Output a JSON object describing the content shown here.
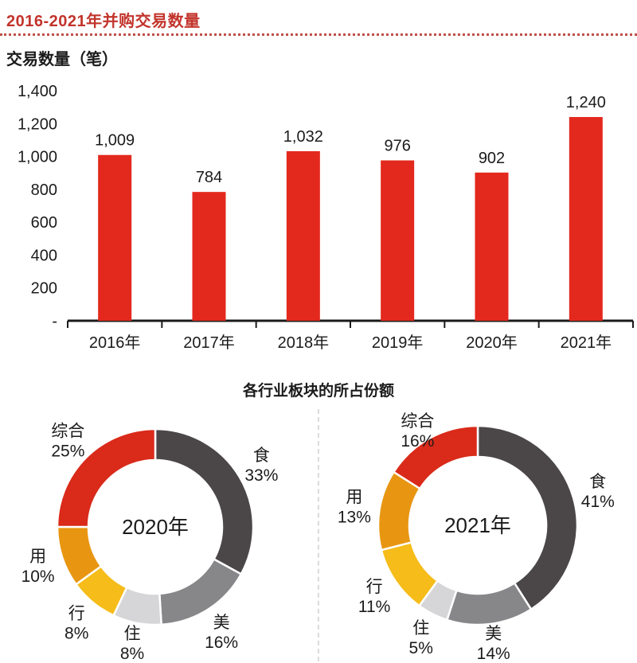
{
  "header": {
    "title": "2016-2021年并购交易数量",
    "title_color": "#c2342c"
  },
  "donut_section": {
    "title": "各行业板块的所占份额"
  },
  "chart_data": [
    {
      "type": "bar",
      "title": "交易数量（笔）",
      "categories": [
        "2016年",
        "2017年",
        "2018年",
        "2019年",
        "2020年",
        "2021年"
      ],
      "values": [
        1009,
        784,
        1032,
        976,
        902,
        1240
      ],
      "value_labels": [
        "1,009",
        "784",
        "1,032",
        "976",
        "902",
        "1,240"
      ],
      "xlabel": "",
      "ylabel": "交易数量（笔）",
      "ylim": [
        0,
        1400
      ],
      "yticks": [
        {
          "value": 1400,
          "label": "1,400"
        },
        {
          "value": 1200,
          "label": "1,200"
        },
        {
          "value": 1000,
          "label": "1,000"
        },
        {
          "value": 800,
          "label": "800"
        },
        {
          "value": 600,
          "label": "600"
        },
        {
          "value": 400,
          "label": "400"
        },
        {
          "value": 200,
          "label": "200"
        },
        {
          "value": 0,
          "label": "-"
        }
      ],
      "bar_color": "#e3291d",
      "grid": false,
      "legend": false
    },
    {
      "type": "pie",
      "subtype": "donut",
      "center_label": "2020年",
      "start_angle_deg": 0,
      "direction": "clockwise",
      "slices": [
        {
          "label": "食",
          "pct": 33,
          "pct_label": "33%",
          "color": "#4b4748"
        },
        {
          "label": "美",
          "pct": 16,
          "pct_label": "16%",
          "color": "#87878a"
        },
        {
          "label": "住",
          "pct": 8,
          "pct_label": "8%",
          "color": "#d6d6d8"
        },
        {
          "label": "行",
          "pct": 8,
          "pct_label": "8%",
          "color": "#f5bc1a"
        },
        {
          "label": "用",
          "pct": 10,
          "pct_label": "10%",
          "color": "#e89612"
        },
        {
          "label": "综合",
          "pct": 25,
          "pct_label": "25%",
          "color": "#d92a1a"
        }
      ]
    },
    {
      "type": "pie",
      "subtype": "donut",
      "center_label": "2021年",
      "start_angle_deg": 0,
      "direction": "clockwise",
      "slices": [
        {
          "label": "食",
          "pct": 41,
          "pct_label": "41%",
          "color": "#4b4748"
        },
        {
          "label": "美",
          "pct": 14,
          "pct_label": "14%",
          "color": "#87878a"
        },
        {
          "label": "住",
          "pct": 5,
          "pct_label": "5%",
          "color": "#d6d6d8"
        },
        {
          "label": "行",
          "pct": 11,
          "pct_label": "11%",
          "color": "#f5bc1a"
        },
        {
          "label": "用",
          "pct": 13,
          "pct_label": "13%",
          "color": "#e89612"
        },
        {
          "label": "综合",
          "pct": 16,
          "pct_label": "16%",
          "color": "#d92a1a"
        }
      ]
    }
  ]
}
